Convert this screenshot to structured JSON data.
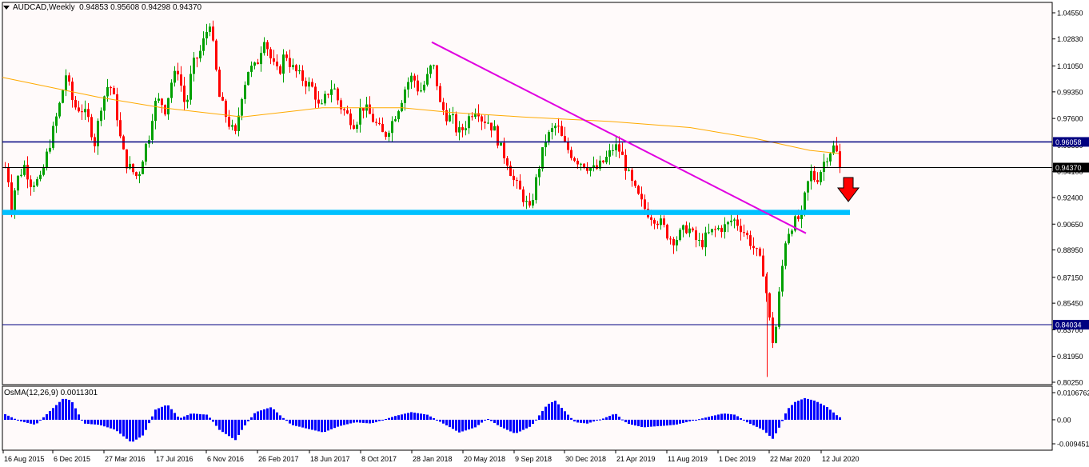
{
  "header": {
    "symbol": "AUDCAD,Weekly",
    "ohlc": "0.94853 0.95608 0.94298 0.94370"
  },
  "osma": {
    "label": "OsMA(12,26,9) 0.0011301",
    "ticks": [
      "0.0106762",
      "0.00",
      "-0.009451"
    ]
  },
  "chart_data": {
    "type": "candlestick",
    "symbol": "AUDCAD",
    "timeframe": "Weekly",
    "last_price": 0.9437,
    "y_ticks": [
      "1.04550",
      "1.02830",
      "1.01050",
      "0.99350",
      "0.97600",
      "0.95850",
      "0.94100",
      "0.92400",
      "0.90650",
      "0.88950",
      "0.87150",
      "0.85450",
      "0.83700",
      "0.81950",
      "0.80250"
    ],
    "ylim": [
      0.8015,
      1.0475
    ],
    "x_ticks": [
      "16 Aug 2015",
      "6 Dec 2015",
      "27 Mar 2016",
      "17 Jul 2016",
      "6 Nov 2016",
      "26 Feb 2017",
      "18 Jun 2017",
      "8 Oct 2017",
      "28 Jan 2018",
      "20 May 2018",
      "9 Sep 2018",
      "30 Dec 2018",
      "21 Apr 2019",
      "11 Aug 2019",
      "1 Dec 2019",
      "22 Mar 2020",
      "12 Jul 2020"
    ],
    "price_path": [
      [
        0,
        0.948
      ],
      [
        6,
        0.936
      ],
      [
        10,
        0.918
      ],
      [
        16,
        0.935
      ],
      [
        26,
        0.945
      ],
      [
        34,
        0.934
      ],
      [
        46,
        0.935
      ],
      [
        54,
        0.952
      ],
      [
        62,
        0.968
      ],
      [
        70,
        0.985
      ],
      [
        78,
        1.005
      ],
      [
        88,
        0.984
      ],
      [
        98,
        0.982
      ],
      [
        106,
        0.975
      ],
      [
        114,
        0.96
      ],
      [
        122,
        0.985
      ],
      [
        132,
        1.0
      ],
      [
        140,
        0.985
      ],
      [
        146,
        0.963
      ],
      [
        152,
        0.948
      ],
      [
        160,
        0.942
      ],
      [
        168,
        0.937
      ],
      [
        176,
        0.955
      ],
      [
        182,
        0.965
      ],
      [
        188,
        0.985
      ],
      [
        196,
        0.988
      ],
      [
        202,
        0.982
      ],
      [
        210,
        1.0
      ],
      [
        218,
        1.008
      ],
      [
        228,
        0.982
      ],
      [
        236,
        1.01
      ],
      [
        246,
        1.02
      ],
      [
        252,
        1.03
      ],
      [
        258,
        1.04
      ],
      [
        264,
        1.015
      ],
      [
        270,
        0.99
      ],
      [
        278,
        0.978
      ],
      [
        284,
        0.97
      ],
      [
        290,
        0.965
      ],
      [
        298,
        0.992
      ],
      [
        306,
        1.008
      ],
      [
        316,
        1.01
      ],
      [
        326,
        1.03
      ],
      [
        336,
        1.012
      ],
      [
        344,
        1.005
      ],
      [
        352,
        1.02
      ],
      [
        360,
        1.01
      ],
      [
        370,
        1.004
      ],
      [
        380,
        0.999
      ],
      [
        388,
        0.995
      ],
      [
        396,
        0.98
      ],
      [
        404,
        0.992
      ],
      [
        412,
        0.998
      ],
      [
        420,
        0.985
      ],
      [
        430,
        0.978
      ],
      [
        440,
        0.972
      ],
      [
        448,
        0.985
      ],
      [
        456,
        0.98
      ],
      [
        466,
        0.972
      ],
      [
        476,
        0.964
      ],
      [
        486,
        0.974
      ],
      [
        496,
        0.986
      ],
      [
        504,
        0.999
      ],
      [
        512,
        1.004
      ],
      [
        520,
        0.993
      ],
      [
        528,
        1.0
      ],
      [
        536,
        1.012
      ],
      [
        540,
        1.006
      ],
      [
        546,
        0.985
      ],
      [
        554,
        0.978
      ],
      [
        562,
        0.975
      ],
      [
        568,
        0.966
      ],
      [
        576,
        0.97
      ],
      [
        584,
        0.979
      ],
      [
        592,
        0.984
      ],
      [
        598,
        0.976
      ],
      [
        606,
        0.974
      ],
      [
        614,
        0.968
      ],
      [
        622,
        0.956
      ],
      [
        630,
        0.948
      ],
      [
        638,
        0.935
      ],
      [
        646,
        0.928
      ],
      [
        652,
        0.922
      ],
      [
        658,
        0.915
      ],
      [
        664,
        0.93
      ],
      [
        670,
        0.945
      ],
      [
        678,
        0.962
      ],
      [
        686,
        0.968
      ],
      [
        692,
        0.972
      ],
      [
        700,
        0.96
      ],
      [
        708,
        0.954
      ],
      [
        716,
        0.949
      ],
      [
        724,
        0.947
      ],
      [
        732,
        0.944
      ],
      [
        740,
        0.942
      ],
      [
        748,
        0.946
      ],
      [
        756,
        0.951
      ],
      [
        764,
        0.958
      ],
      [
        770,
        0.955
      ],
      [
        776,
        0.948
      ],
      [
        784,
        0.935
      ],
      [
        792,
        0.926
      ],
      [
        800,
        0.918
      ],
      [
        808,
        0.913
      ],
      [
        816,
        0.91
      ],
      [
        824,
        0.906
      ],
      [
        832,
        0.898
      ],
      [
        840,
        0.896
      ],
      [
        848,
        0.901
      ],
      [
        856,
        0.905
      ],
      [
        864,
        0.897
      ],
      [
        872,
        0.893
      ],
      [
        880,
        0.899
      ],
      [
        888,
        0.902
      ],
      [
        896,
        0.904
      ],
      [
        904,
        0.905
      ],
      [
        912,
        0.91
      ],
      [
        920,
        0.906
      ],
      [
        928,
        0.9
      ],
      [
        936,
        0.893
      ],
      [
        944,
        0.885
      ],
      [
        950,
        0.876
      ],
      [
        956,
        0.854
      ],
      [
        960,
        0.832
      ],
      [
        964,
        0.828
      ],
      [
        968,
        0.85
      ],
      [
        972,
        0.87
      ],
      [
        978,
        0.896
      ],
      [
        984,
        0.905
      ],
      [
        990,
        0.908
      ],
      [
        998,
        0.912
      ],
      [
        1004,
        0.93
      ],
      [
        1010,
        0.94
      ],
      [
        1016,
        0.935
      ],
      [
        1022,
        0.942
      ],
      [
        1028,
        0.95
      ],
      [
        1034,
        0.955
      ],
      [
        1040,
        0.958
      ],
      [
        1046,
        0.9437
      ]
    ],
    "moving_average": [
      [
        0,
        1.003
      ],
      [
        120,
        0.99
      ],
      [
        200,
        0.983
      ],
      [
        300,
        0.977
      ],
      [
        400,
        0.983
      ],
      [
        500,
        0.983
      ],
      [
        560,
        0.98
      ],
      [
        650,
        0.977
      ],
      [
        760,
        0.974
      ],
      [
        860,
        0.97
      ],
      [
        940,
        0.963
      ],
      [
        1010,
        0.955
      ],
      [
        1046,
        0.953
      ]
    ],
    "osma_histogram": [
      [
        0,
        0.0025
      ],
      [
        20,
        -0.0005
      ],
      [
        40,
        -0.002
      ],
      [
        60,
        0.004
      ],
      [
        75,
        0.0085
      ],
      [
        85,
        0.0075
      ],
      [
        100,
        -0.0015
      ],
      [
        120,
        -0.002
      ],
      [
        140,
        -0.004
      ],
      [
        160,
        -0.009
      ],
      [
        175,
        -0.006
      ],
      [
        190,
        0.004
      ],
      [
        205,
        0.006
      ],
      [
        220,
        0.0005
      ],
      [
        235,
        0.0025
      ],
      [
        255,
        0.002
      ],
      [
        270,
        -0.004
      ],
      [
        290,
        -0.008
      ],
      [
        300,
        -0.003
      ],
      [
        315,
        0.003
      ],
      [
        335,
        0.005
      ],
      [
        345,
        0.002
      ],
      [
        360,
        -0.002
      ],
      [
        380,
        -0.0035
      ],
      [
        400,
        -0.005
      ],
      [
        420,
        -0.0025
      ],
      [
        440,
        -0.001
      ],
      [
        460,
        -0.0015
      ],
      [
        490,
        0.0015
      ],
      [
        510,
        0.003
      ],
      [
        530,
        0.002
      ],
      [
        550,
        -0.0015
      ],
      [
        570,
        -0.005
      ],
      [
        590,
        -0.003
      ],
      [
        605,
        0.0005
      ],
      [
        620,
        -0.0025
      ],
      [
        640,
        -0.0055
      ],
      [
        660,
        -0.0025
      ],
      [
        680,
        0.006
      ],
      [
        690,
        0.0075
      ],
      [
        700,
        0.004
      ],
      [
        715,
        -0.001
      ],
      [
        730,
        -0.0015
      ],
      [
        750,
        0.0005
      ],
      [
        765,
        0.0025
      ],
      [
        780,
        -0.0015
      ],
      [
        800,
        -0.003
      ],
      [
        820,
        -0.0025
      ],
      [
        840,
        -0.002
      ],
      [
        860,
        -0.0005
      ],
      [
        880,
        0.001
      ],
      [
        900,
        0.0025
      ],
      [
        915,
        0.002
      ],
      [
        930,
        -0.001
      ],
      [
        950,
        -0.004
      ],
      [
        962,
        -0.0075
      ],
      [
        972,
        -0.002
      ],
      [
        980,
        0.004
      ],
      [
        990,
        0.007
      ],
      [
        1002,
        0.0085
      ],
      [
        1015,
        0.0075
      ],
      [
        1030,
        0.005
      ],
      [
        1045,
        0.001
      ]
    ],
    "annotations": {
      "trendline": {
        "from": [
          540,
          1.0262
        ],
        "to": [
          1008,
          0.9005
        ]
      },
      "support_zone": {
        "from": 0.9125,
        "to": 0.9159
      },
      "h_line_1": {
        "value": 0.96058,
        "label": "0.96058"
      },
      "h_line_last": {
        "value": 0.9437,
        "label": "0.94370"
      },
      "h_line_2": {
        "value": 0.84034,
        "label": "0.84034"
      },
      "arrow": "down"
    },
    "colors": {
      "up": "#00a000",
      "down": "#ff0000",
      "ma": "#ffaa00",
      "trendline": "#e000e0",
      "support": "#00c0ff",
      "level": "#000080",
      "arrow": "#ff0000",
      "osma": "#0000ff"
    }
  }
}
